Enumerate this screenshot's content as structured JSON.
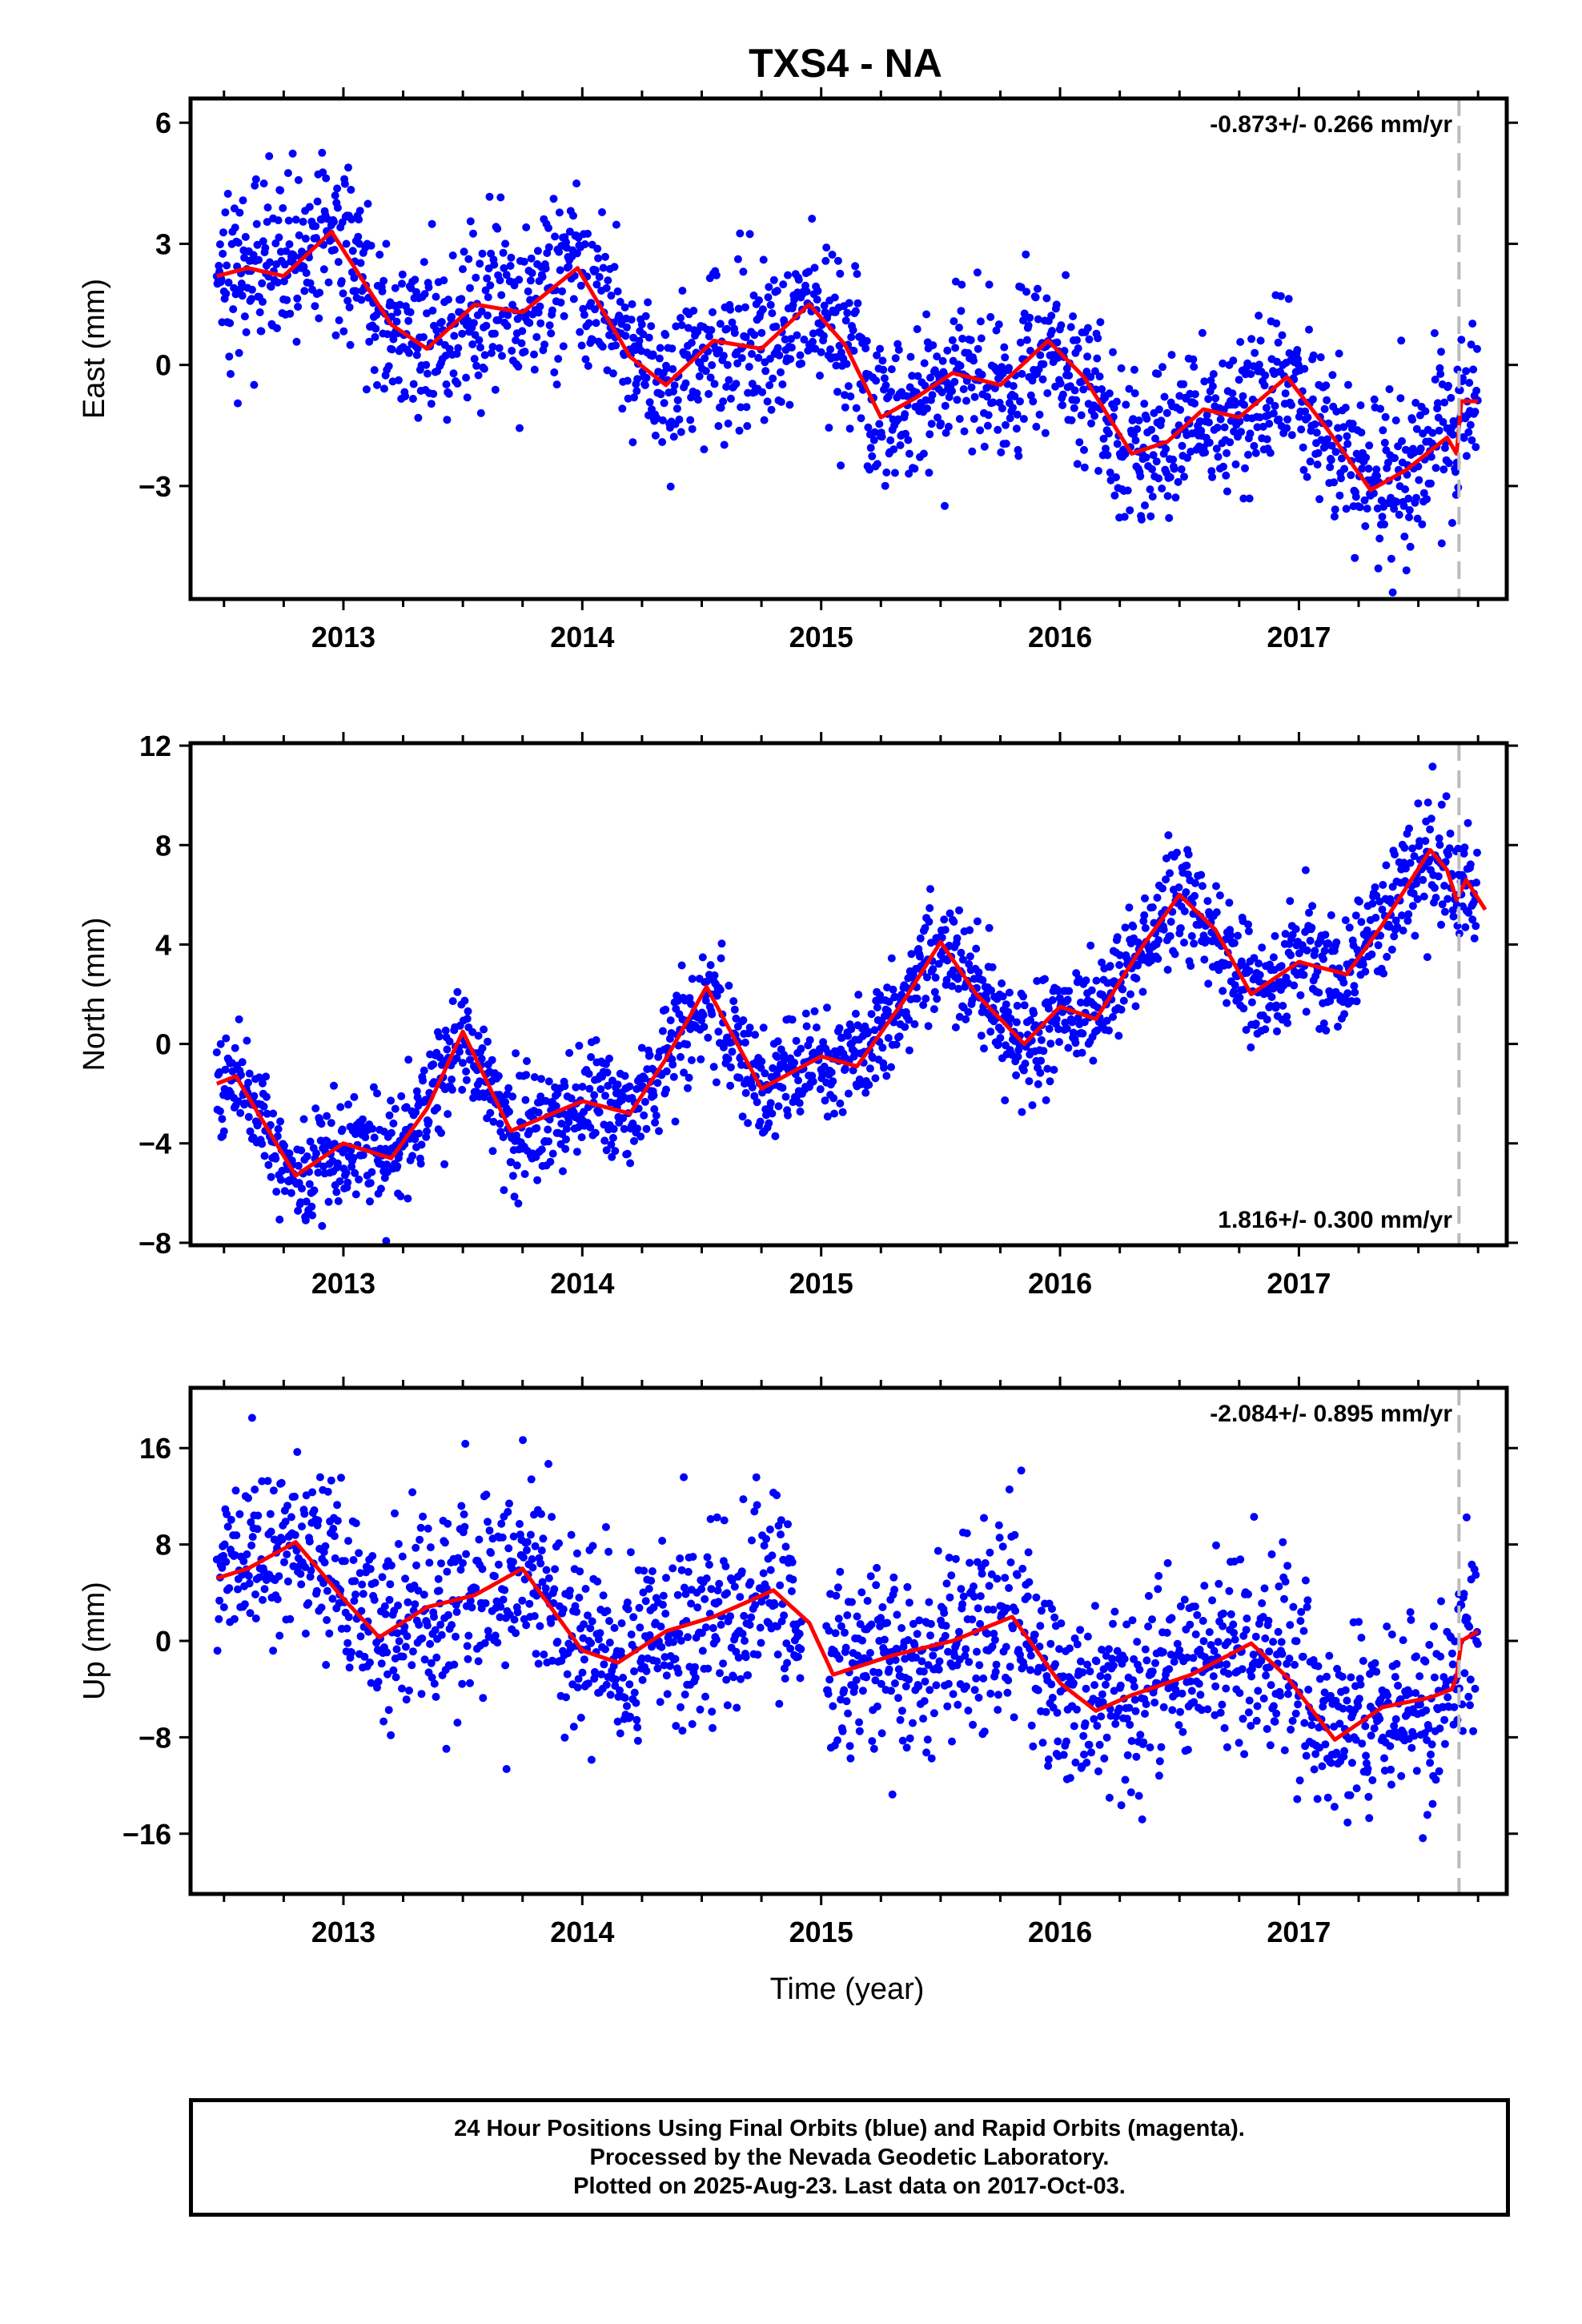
{
  "title": "TXS4 - NA",
  "xlabel": "Time (year)",
  "colors": {
    "points": "#0000ff",
    "fit": "#ff0000",
    "dashed": "#bbbbbb",
    "frame": "#000000"
  },
  "footer": {
    "line1": "24 Hour Positions Using Final Orbits (blue) and Rapid Orbits (magenta).",
    "line2": "Processed by the Nevada Geodetic Laboratory.",
    "line3": "Plotted on 2025-Aug-23. Last data on 2017-Oct-03."
  },
  "chart_data": [
    {
      "type": "scatter",
      "component": "East",
      "ylabel": "East (mm)",
      "rate_label": "-0.873+/- 0.266 mm/yr",
      "rate_label_position": "top-right",
      "xlim": [
        2012.36,
        2017.87
      ],
      "ylim": [
        -5.8,
        6.6
      ],
      "xticks": [
        2013,
        2014,
        2015,
        2016,
        2017
      ],
      "yticks": [
        6,
        3,
        0,
        -3
      ],
      "grid": false,
      "dashed_line_x": 2017.67,
      "series": [
        {
          "kind": "points",
          "color": "#0000ff",
          "start": 2012.47,
          "end": 2017.75,
          "scatter_sd": 1.0,
          "gaps": []
        },
        {
          "kind": "trend_fit",
          "color": "#ff0000",
          "x": [
            2012.47,
            2012.6,
            2012.75,
            2012.95,
            2013.2,
            2013.35,
            2013.55,
            2013.75,
            2013.98,
            2014.2,
            2014.35,
            2014.55,
            2014.75,
            2014.95,
            2015.1,
            2015.25,
            2015.4,
            2015.55,
            2015.75,
            2015.95,
            2016.1,
            2016.3,
            2016.45,
            2016.6,
            2016.75,
            2016.95,
            2017.12,
            2017.3,
            2017.45,
            2017.62,
            2017.66,
            2017.68,
            2017.75
          ],
          "y": [
            2.2,
            2.4,
            2.2,
            3.3,
            1.0,
            0.4,
            1.5,
            1.3,
            2.4,
            0.2,
            -0.5,
            0.6,
            0.4,
            1.5,
            0.5,
            -1.3,
            -0.8,
            -0.2,
            -0.5,
            0.6,
            -0.3,
            -2.2,
            -1.9,
            -1.1,
            -1.3,
            -0.3,
            -1.6,
            -3.1,
            -2.6,
            -1.8,
            -2.2,
            -0.9,
            -0.9
          ]
        }
      ]
    },
    {
      "type": "scatter",
      "component": "North",
      "ylabel": "North (mm)",
      "rate_label": "1.816+/- 0.300 mm/yr",
      "rate_label_position": "bottom-right",
      "xlim": [
        2012.36,
        2017.87
      ],
      "ylim": [
        -8.1,
        12.1
      ],
      "xticks": [
        2013,
        2014,
        2015,
        2016,
        2017
      ],
      "yticks": [
        12,
        8,
        4,
        0,
        -4,
        -8
      ],
      "grid": false,
      "dashed_line_x": 2017.67,
      "series": [
        {
          "kind": "points",
          "color": "#0000ff",
          "start": 2012.47,
          "end": 2017.75,
          "scatter_sd": 1.1,
          "gaps": []
        },
        {
          "kind": "trend_fit",
          "color": "#ff0000",
          "x": [
            2012.47,
            2012.55,
            2012.8,
            2013.0,
            2013.2,
            2013.35,
            2013.5,
            2013.7,
            2014.0,
            2014.2,
            2014.35,
            2014.52,
            2014.75,
            2015.0,
            2015.15,
            2015.35,
            2015.5,
            2015.65,
            2015.85,
            2016.0,
            2016.15,
            2016.35,
            2016.5,
            2016.65,
            2016.8,
            2017.0,
            2017.2,
            2017.35,
            2017.55,
            2017.62,
            2017.66,
            2017.7,
            2017.78
          ],
          "y": [
            -1.6,
            -1.3,
            -5.3,
            -4.0,
            -4.6,
            -2.6,
            0.5,
            -3.5,
            -2.3,
            -2.8,
            -0.6,
            2.3,
            -1.8,
            -0.5,
            -0.9,
            1.8,
            4.1,
            2.0,
            0.0,
            1.5,
            1.0,
            4.0,
            6.0,
            4.6,
            2.0,
            3.3,
            2.8,
            4.8,
            7.8,
            7.0,
            5.8,
            6.6,
            5.4
          ]
        }
      ]
    },
    {
      "type": "scatter",
      "component": "Up",
      "ylabel": "Up (mm)",
      "rate_label": "-2.084+/- 0.895 mm/yr",
      "rate_label_position": "top-right",
      "xlim": [
        2012.36,
        2017.87
      ],
      "ylim": [
        -21,
        21
      ],
      "xticks": [
        2013,
        2014,
        2015,
        2016,
        2017
      ],
      "yticks": [
        16,
        8,
        0,
        -8,
        -16
      ],
      "grid": false,
      "dashed_line_x": 2017.67,
      "series": [
        {
          "kind": "points",
          "color": "#0000ff",
          "start": 2012.47,
          "end": 2017.75,
          "scatter_sd": 4.0,
          "gaps": [
            [
              2014.92,
              2015.02
            ]
          ]
        },
        {
          "kind": "trend_fit",
          "color": "#ff0000",
          "x": [
            2012.47,
            2012.6,
            2012.8,
            2013.0,
            2013.15,
            2013.35,
            2013.55,
            2013.75,
            2014.0,
            2014.15,
            2014.35,
            2014.55,
            2014.8,
            2014.95,
            2015.05,
            2015.3,
            2015.55,
            2015.8,
            2016.0,
            2016.15,
            2016.3,
            2016.55,
            2016.8,
            2016.95,
            2017.15,
            2017.35,
            2017.55,
            2017.64,
            2017.66,
            2017.68,
            2017.75
          ],
          "y": [
            5.2,
            6.0,
            8.2,
            3.5,
            0.3,
            2.8,
            3.8,
            6.0,
            -0.8,
            -1.8,
            0.8,
            2.0,
            4.2,
            1.5,
            -2.8,
            -1.2,
            0.0,
            2.0,
            -3.5,
            -5.8,
            -4.5,
            -2.8,
            -0.2,
            -3.0,
            -8.2,
            -5.5,
            -4.7,
            -4.0,
            -3.0,
            0.0,
            0.8
          ]
        }
      ]
    }
  ]
}
